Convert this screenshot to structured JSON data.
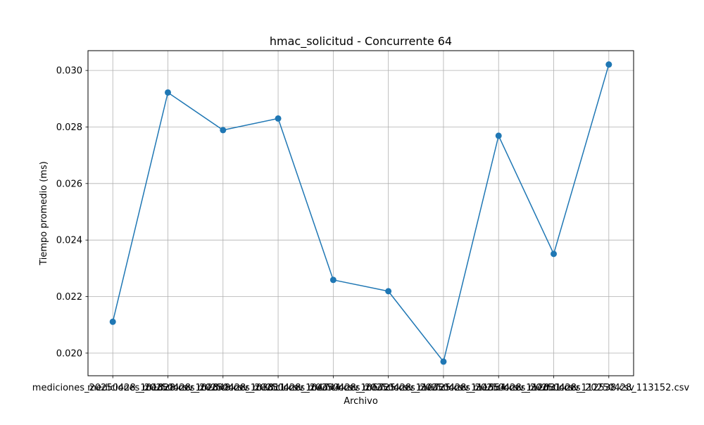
{
  "chart_data": {
    "type": "line",
    "title": "hmac_solicitud - Concurrente 64",
    "xlabel": "Archivo",
    "ylabel": "Tiempo promedio (ms)",
    "categories": [
      "mediciones_20250428_101828.csv",
      "mediciones_20250428_102848.csv",
      "mediciones_20250428_103811.csv",
      "mediciones_20250428_104744.csv",
      "mediciones_20250428_105725.csv",
      "mediciones_20250428_110725.csv",
      "mediciones_20250428_111554.csv",
      "mediciones_20250428_112031.csv",
      "mediciones_20250428_112538.csv",
      "mediciones_20250428_113152.csv"
    ],
    "series": [
      {
        "values": [
          0.02111,
          0.02922,
          0.02789,
          0.0283,
          0.02259,
          0.02219,
          0.0197,
          0.02769,
          0.02351,
          0.03021
        ],
        "color": "#1f77b4",
        "marker": "circle"
      }
    ],
    "ylim": [
      0.0192,
      0.0307
    ],
    "yticks": [
      0.02,
      0.022,
      0.024,
      0.026,
      0.028,
      0.03
    ],
    "ytick_labels": [
      "0.020",
      "0.022",
      "0.024",
      "0.026",
      "0.028",
      "0.030"
    ],
    "grid": true,
    "legend": "none"
  }
}
